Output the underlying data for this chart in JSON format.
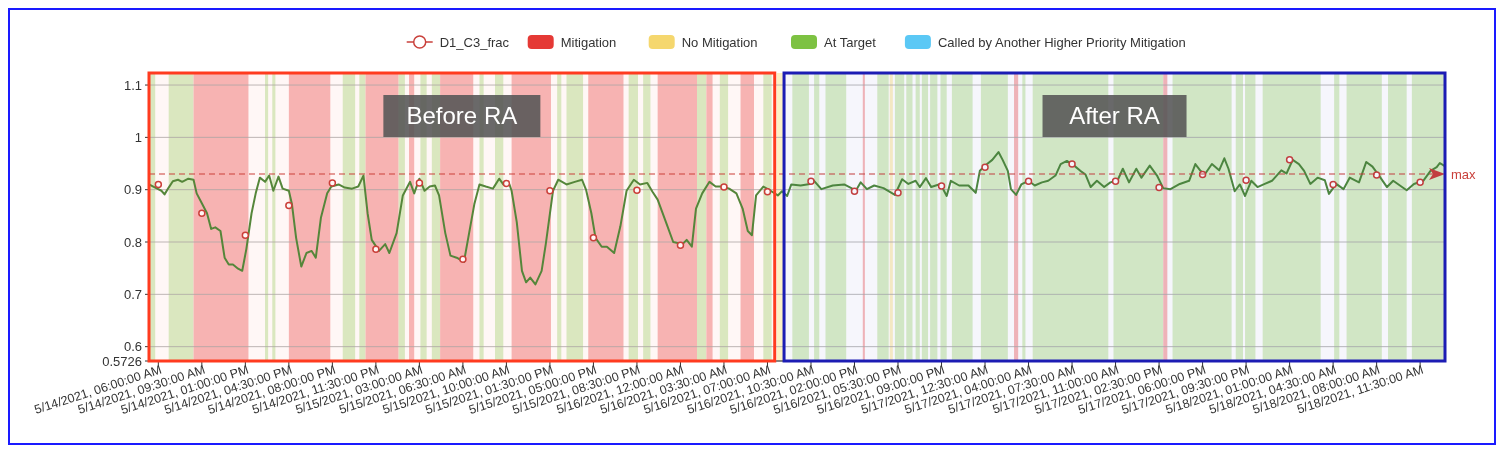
{
  "chart_data": {
    "type": "line",
    "legend": "top",
    "grid": "y",
    "xlim": [
      "2021-05-14T05:15",
      "2021-05-18T13:30"
    ],
    "ylim": [
      0.5726,
      1.123
    ],
    "yticks": [
      0.5726,
      0.6,
      0.7,
      0.8,
      0.9,
      1,
      1.1
    ],
    "xticks": [
      {
        "value": "2021-05-14T06:00",
        "label": "5/14/2021, 06:00:00 AM"
      },
      {
        "value": "2021-05-14T09:30",
        "label": "5/14/2021, 09:30:00 AM"
      },
      {
        "value": "2021-05-14T13:00",
        "label": "5/14/2021, 01:00:00 PM"
      },
      {
        "value": "2021-05-14T16:30",
        "label": "5/14/2021, 04:30:00 PM"
      },
      {
        "value": "2021-05-14T20:00",
        "label": "5/14/2021, 08:00:00 PM"
      },
      {
        "value": "2021-05-14T23:30",
        "label": "5/14/2021, 11:30:00 PM"
      },
      {
        "value": "2021-05-15T03:00",
        "label": "5/15/2021, 03:00:00 AM"
      },
      {
        "value": "2021-05-15T06:30",
        "label": "5/15/2021, 06:30:00 AM"
      },
      {
        "value": "2021-05-15T10:00",
        "label": "5/15/2021, 10:00:00 AM"
      },
      {
        "value": "2021-05-15T13:30",
        "label": "5/15/2021, 01:30:00 PM"
      },
      {
        "value": "2021-05-15T17:00",
        "label": "5/15/2021, 05:00:00 PM"
      },
      {
        "value": "2021-05-15T20:30",
        "label": "5/15/2021, 08:30:00 PM"
      },
      {
        "value": "2021-05-16T00:00",
        "label": "5/16/2021, 12:00:00 AM"
      },
      {
        "value": "2021-05-16T03:30",
        "label": "5/16/2021, 03:30:00 AM"
      },
      {
        "value": "2021-05-16T07:00",
        "label": "5/16/2021, 07:00:00 AM"
      },
      {
        "value": "2021-05-16T10:30",
        "label": "5/16/2021, 10:30:00 AM"
      },
      {
        "value": "2021-05-16T14:00",
        "label": "5/16/2021, 02:00:00 PM"
      },
      {
        "value": "2021-05-16T17:30",
        "label": "5/16/2021, 05:30:00 PM"
      },
      {
        "value": "2021-05-16T21:00",
        "label": "5/16/2021, 09:00:00 PM"
      },
      {
        "value": "2021-05-17T00:30",
        "label": "5/17/2021, 12:30:00 AM"
      },
      {
        "value": "2021-05-17T04:00",
        "label": "5/17/2021, 04:00:00 AM"
      },
      {
        "value": "2021-05-17T07:30",
        "label": "5/17/2021, 07:30:00 AM"
      },
      {
        "value": "2021-05-17T11:00",
        "label": "5/17/2021, 11:00:00 AM"
      },
      {
        "value": "2021-05-17T14:30",
        "label": "5/17/2021, 02:30:00 PM"
      },
      {
        "value": "2021-05-17T18:00",
        "label": "5/17/2021, 06:00:00 PM"
      },
      {
        "value": "2021-05-17T21:30",
        "label": "5/17/2021, 09:30:00 PM"
      },
      {
        "value": "2021-05-18T01:00",
        "label": "5/18/2021, 01:00:00 AM"
      },
      {
        "value": "2021-05-18T04:30",
        "label": "5/18/2021, 04:30:00 AM"
      },
      {
        "value": "2021-05-18T08:00",
        "label": "5/18/2021, 08:00:00 AM"
      },
      {
        "value": "2021-05-18T11:30",
        "label": "5/18/2021, 11:30:00 AM"
      }
    ],
    "series": [
      {
        "color": "#4f8a3c",
        "x": [
          "2021-05-14T05:15",
          "2021-05-14T05:45",
          "2021-05-14T06:15",
          "2021-05-14T06:30",
          "2021-05-14T06:50",
          "2021-05-14T07:10",
          "2021-05-14T07:35",
          "2021-05-14T07:55",
          "2021-05-14T08:25",
          "2021-05-14T08:50",
          "2021-05-14T09:05",
          "2021-05-14T09:30",
          "2021-05-14T09:55",
          "2021-05-14T10:15",
          "2021-05-14T10:35",
          "2021-05-14T11:00",
          "2021-05-14T11:20",
          "2021-05-14T11:40",
          "2021-05-14T12:00",
          "2021-05-14T12:25",
          "2021-05-14T12:45",
          "2021-05-14T13:05",
          "2021-05-14T13:30",
          "2021-05-14T13:50",
          "2021-05-14T14:10",
          "2021-05-14T14:35",
          "2021-05-14T14:55",
          "2021-05-14T15:15",
          "2021-05-14T15:40",
          "2021-05-14T16:00",
          "2021-05-14T16:30",
          "2021-05-14T16:45",
          "2021-05-14T17:05",
          "2021-05-14T17:30",
          "2021-05-14T17:55",
          "2021-05-14T18:20",
          "2021-05-14T18:40",
          "2021-05-14T19:05",
          "2021-05-14T19:35",
          "2021-05-14T19:55",
          "2021-05-14T20:30",
          "2021-05-14T21:00",
          "2021-05-14T21:35",
          "2021-05-14T22:05",
          "2021-05-14T22:30",
          "2021-05-14T22:50",
          "2021-05-14T23:10",
          "2021-05-14T23:45",
          "2021-05-15T00:15",
          "2021-05-15T00:35",
          "2021-05-15T01:10",
          "2021-05-15T01:40",
          "2021-05-15T02:15",
          "2021-05-15T02:35",
          "2021-05-15T03:00",
          "2021-05-15T03:25",
          "2021-05-15T03:50",
          "2021-05-15T04:15",
          "2021-05-15T04:35",
          "2021-05-15T05:05",
          "2021-05-15T05:30",
          "2021-05-15T06:00",
          "2021-05-15T06:35",
          "2021-05-15T07:00",
          "2021-05-15T07:25",
          "2021-05-15T07:50",
          "2021-05-15T08:20",
          "2021-05-15T08:55",
          "2021-05-15T09:25",
          "2021-05-15T09:45",
          "2021-05-15T10:15",
          "2021-05-15T10:25",
          "2021-05-15T10:50",
          "2021-05-15T11:15",
          "2021-05-15T11:35",
          "2021-05-15T11:55",
          "2021-05-15T12:20",
          "2021-05-15T12:50",
          "2021-05-15T13:10",
          "2021-05-15T13:45",
          "2021-05-15T14:10",
          "2021-05-15T14:50",
          "2021-05-15T15:30",
          "2021-05-15T16:05",
          "2021-05-15T16:25",
          "2021-05-15T16:50",
          "2021-05-15T17:10",
          "2021-05-15T17:40",
          "2021-05-15T18:05",
          "2021-05-15T18:40",
          "2021-05-15T19:10",
          "2021-05-15T19:40",
          "2021-05-15T20:15",
          "2021-05-15T20:45",
          "2021-05-15T21:20",
          "2021-05-15T21:45",
          "2021-05-15T22:10",
          "2021-05-15T22:50",
          "2021-05-15T23:25",
          "2021-05-16T00:10",
          "2021-05-16T00:30",
          "2021-05-16T00:55",
          "2021-05-16T01:15",
          "2021-05-16T01:45",
          "2021-05-16T02:20",
          "2021-05-16T02:50",
          "2021-05-16T03:25",
          "2021-05-16T03:55",
          "2021-05-16T04:30",
          "2021-05-16T05:00",
          "2021-05-16T05:25",
          "2021-05-16T05:45",
          "2021-05-16T06:05",
          "2021-05-16T06:40",
          "2021-05-16T07:15",
          "2021-05-16T07:50",
          "2021-05-16T08:10",
          "2021-05-16T08:35",
          "2021-05-16T08:55",
          "2021-05-16T09:40",
          "2021-05-16T10:25",
          "2021-05-16T10:45",
          "2021-05-16T11:20",
          "2021-05-16T12:15",
          "2021-05-16T13:10",
          "2021-05-16T13:45",
          "2021-05-16T14:05",
          "2021-05-16T14:30",
          "2021-05-16T15:00",
          "2021-05-16T15:35",
          "2021-05-16T16:20",
          "2021-05-16T17:15",
          "2021-05-16T17:50",
          "2021-05-16T18:20",
          "2021-05-16T18:55",
          "2021-05-16T19:15",
          "2021-05-16T19:45",
          "2021-05-16T20:10",
          "2021-05-16T20:55",
          "2021-05-16T21:25",
          "2021-05-16T21:45",
          "2021-05-16T22:25",
          "2021-05-16T23:10",
          "2021-05-16T23:45",
          "2021-05-17T00:05",
          "2021-05-17T00:40",
          "2021-05-17T01:05",
          "2021-05-17T01:35",
          "2021-05-17T01:55",
          "2021-05-17T02:20",
          "2021-05-17T02:35",
          "2021-05-17T03:00",
          "2021-05-17T03:25",
          "2021-05-17T04:00",
          "2021-05-17T04:30",
          "2021-05-17T05:05",
          "2021-05-17T05:35",
          "2021-05-17T06:10",
          "2021-05-17T06:35",
          "2021-05-17T07:05",
          "2021-05-17T07:40",
          "2021-05-17T08:10",
          "2021-05-17T08:35",
          "2021-05-17T09:00",
          "2021-05-17T09:30",
          "2021-05-17T10:05",
          "2021-05-17T10:35",
          "2021-05-17T11:10",
          "2021-05-17T11:35",
          "2021-05-17T12:05",
          "2021-05-17T12:40",
          "2021-05-17T13:05",
          "2021-05-17T13:45",
          "2021-05-17T14:20",
          "2021-05-17T14:50",
          "2021-05-17T15:25",
          "2021-05-17T16:10",
          "2021-05-17T16:55",
          "2021-05-17T17:25",
          "2021-05-17T17:50",
          "2021-05-17T18:10",
          "2021-05-17T18:45",
          "2021-05-17T19:20",
          "2021-05-17T19:45",
          "2021-05-17T20:05",
          "2021-05-17T20:35",
          "2021-05-17T21:00",
          "2021-05-17T21:25",
          "2021-05-17T21:55",
          "2021-05-17T22:25",
          "2021-05-17T23:00",
          "2021-05-17T23:35",
          "2021-05-18T00:20",
          "2021-05-18T00:45",
          "2021-05-18T01:15",
          "2021-05-18T01:45",
          "2021-05-18T02:10",
          "2021-05-18T02:40",
          "2021-05-18T03:15",
          "2021-05-18T03:50",
          "2021-05-18T04:10",
          "2021-05-18T04:45",
          "2021-05-18T05:20",
          "2021-05-18T05:50",
          "2021-05-18T06:35",
          "2021-05-18T07:10",
          "2021-05-18T07:40",
          "2021-05-18T08:15",
          "2021-05-18T08:50",
          "2021-05-18T09:20",
          "2021-05-18T10:25",
          "2021-05-18T11:00",
          "2021-05-18T11:45",
          "2021-05-18T12:20",
          "2021-05-18T12:50",
          "2021-05-18T13:05",
          "2021-05-18T13:25"
        ],
        "values": [
          0.91,
          0.904,
          0.898,
          0.891,
          0.904,
          0.916,
          0.919,
          0.915,
          0.921,
          0.919,
          0.893,
          0.874,
          0.855,
          0.825,
          0.828,
          0.821,
          0.77,
          0.757,
          0.757,
          0.749,
          0.745,
          0.787,
          0.855,
          0.893,
          0.923,
          0.915,
          0.927,
          0.898,
          0.925,
          0.902,
          0.898,
          0.872,
          0.808,
          0.753,
          0.779,
          0.783,
          0.77,
          0.847,
          0.893,
          0.906,
          0.91,
          0.904,
          0.902,
          0.906,
          0.927,
          0.855,
          0.804,
          0.783,
          0.796,
          0.779,
          0.817,
          0.889,
          0.915,
          0.893,
          0.921,
          0.898,
          0.906,
          0.908,
          0.889,
          0.817,
          0.774,
          0.77,
          0.762,
          0.817,
          0.872,
          0.91,
          0.906,
          0.902,
          0.921,
          0.91,
          0.91,
          0.898,
          0.838,
          0.745,
          0.723,
          0.732,
          0.719,
          0.745,
          0.796,
          0.898,
          0.919,
          0.91,
          0.915,
          0.919,
          0.899,
          0.855,
          0.808,
          0.791,
          0.791,
          0.779,
          0.83,
          0.898,
          0.919,
          0.91,
          0.913,
          0.896,
          0.881,
          0.838,
          0.8,
          0.796,
          0.804,
          0.791,
          0.864,
          0.893,
          0.915,
          0.906,
          0.906,
          0.902,
          0.893,
          0.864,
          0.821,
          0.813,
          0.889,
          0.906,
          0.898,
          0.889,
          0.897,
          0.888,
          0.91,
          0.908,
          0.911,
          0.917,
          0.901,
          0.908,
          0.91,
          0.903,
          0.897,
          0.914,
          0.901,
          0.908,
          0.903,
          0.89,
          0.92,
          0.911,
          0.917,
          0.905,
          0.922,
          0.905,
          0.911,
          0.888,
          0.917,
          0.908,
          0.908,
          0.894,
          0.936,
          0.949,
          0.957,
          0.972,
          0.957,
          0.936,
          0.901,
          0.89,
          0.91,
          0.917,
          0.908,
          0.914,
          0.917,
          0.927,
          0.949,
          0.955,
          0.946,
          0.936,
          0.929,
          0.905,
          0.917,
          0.905,
          0.914,
          0.918,
          0.94,
          0.914,
          0.94,
          0.923,
          0.946,
          0.927,
          0.903,
          0.901,
          0.911,
          0.917,
          0.949,
          0.936,
          0.929,
          0.949,
          0.937,
          0.96,
          0.94,
          0.897,
          0.91,
          0.888,
          0.917,
          0.905,
          0.911,
          0.917,
          0.937,
          0.931,
          0.957,
          0.949,
          0.936,
          0.911,
          0.923,
          0.918,
          0.892,
          0.911,
          0.901,
          0.923,
          0.914,
          0.953,
          0.944,
          0.925,
          0.905,
          0.917,
          0.899,
          0.911,
          0.917,
          0.936,
          0.943,
          0.951,
          0.946
        ]
      },
      {
        "type": "scatter",
        "name": "D1_C3_frac",
        "color": "#c9403b",
        "marker": "circle",
        "x": [
          "2021-05-14T06:00",
          "2021-05-14T09:30",
          "2021-05-14T13:00",
          "2021-05-14T16:30",
          "2021-05-14T20:00",
          "2021-05-14T23:30",
          "2021-05-15T03:00",
          "2021-05-15T06:30",
          "2021-05-15T10:00",
          "2021-05-15T13:30",
          "2021-05-15T17:00",
          "2021-05-15T20:30",
          "2021-05-16T00:00",
          "2021-05-16T03:30",
          "2021-05-16T07:00",
          "2021-05-16T10:30",
          "2021-05-16T14:00",
          "2021-05-16T17:30",
          "2021-05-16T21:00",
          "2021-05-17T00:30",
          "2021-05-17T04:00",
          "2021-05-17T07:30",
          "2021-05-17T11:00",
          "2021-05-17T14:30",
          "2021-05-17T18:00",
          "2021-05-17T21:30",
          "2021-05-18T01:00",
          "2021-05-18T04:30",
          "2021-05-18T08:00",
          "2021-05-18T11:30"
        ],
        "values": [
          0.91,
          0.855,
          0.813,
          0.87,
          0.913,
          0.786,
          0.913,
          0.767,
          0.912,
          0.898,
          0.808,
          0.899,
          0.794,
          0.905,
          0.896,
          0.916,
          0.897,
          0.894,
          0.907,
          0.943,
          0.916,
          0.949,
          0.916,
          0.904,
          0.929,
          0.918,
          0.957,
          0.91,
          0.928,
          0.914
        ]
      },
      {
        "type": "area",
        "name": "Mitigation",
        "color": "#e53935"
      },
      {
        "type": "area",
        "name": "No Mitigation",
        "color": "#f5d76e"
      },
      {
        "type": "area",
        "name": "At Target",
        "color": "#7dc242"
      },
      {
        "type": "area",
        "name": "Called by Another Higher Priority Mitigation",
        "color": "#5bc8f5"
      }
    ],
    "ref_lines": [
      {
        "axis": "y",
        "value": 0.93,
        "label": "max",
        "color": "#c9403b",
        "line_style": "dashed"
      }
    ],
    "bands": [
      {
        "axis": "x",
        "from": "2021-05-14T05:15",
        "to": "2021-05-14T05:45",
        "color": "#d9efc6"
      },
      {
        "axis": "x",
        "from": "2021-05-14T06:50",
        "to": "2021-05-14T08:50",
        "color": "#d9efc6"
      },
      {
        "axis": "x",
        "from": "2021-05-14T08:50",
        "to": "2021-05-14T13:15",
        "color": "#f7b9b9"
      },
      {
        "axis": "x",
        "from": "2021-05-14T14:35",
        "to": "2021-05-14T14:50",
        "color": "#d9efc6"
      },
      {
        "axis": "x",
        "from": "2021-05-14T15:10",
        "to": "2021-05-14T15:25",
        "color": "#d9efc6"
      },
      {
        "axis": "x",
        "from": "2021-05-14T16:30",
        "to": "2021-05-14T19:50",
        "color": "#f7b9b9"
      },
      {
        "axis": "x",
        "from": "2021-05-14T20:50",
        "to": "2021-05-14T21:50",
        "color": "#d9efc6"
      },
      {
        "axis": "x",
        "from": "2021-05-14T22:10",
        "to": "2021-05-14T22:40",
        "color": "#d9efc6"
      },
      {
        "axis": "x",
        "from": "2021-05-14T22:40",
        "to": "2021-05-15T01:20",
        "color": "#f7b9b9"
      },
      {
        "axis": "x",
        "from": "2021-05-15T01:20",
        "to": "2021-05-15T01:50",
        "color": "#d9efc6"
      },
      {
        "axis": "x",
        "from": "2021-05-15T02:10",
        "to": "2021-05-15T02:35",
        "color": "#f7b9b9"
      },
      {
        "axis": "x",
        "from": "2021-05-15T03:05",
        "to": "2021-05-15T03:35",
        "color": "#d9efc6"
      },
      {
        "axis": "x",
        "from": "2021-05-15T04:00",
        "to": "2021-05-15T04:40",
        "color": "#d9efc6"
      },
      {
        "axis": "x",
        "from": "2021-05-15T04:40",
        "to": "2021-05-15T07:20",
        "color": "#f7b9b9"
      },
      {
        "axis": "x",
        "from": "2021-05-15T07:50",
        "to": "2021-05-15T08:10",
        "color": "#d9efc6"
      },
      {
        "axis": "x",
        "from": "2021-05-15T09:05",
        "to": "2021-05-15T09:45",
        "color": "#d9efc6"
      },
      {
        "axis": "x",
        "from": "2021-05-15T10:25",
        "to": "2021-05-15T13:35",
        "color": "#f7b9b9"
      },
      {
        "axis": "x",
        "from": "2021-05-15T14:05",
        "to": "2021-05-15T14:25",
        "color": "#d9efc6"
      },
      {
        "axis": "x",
        "from": "2021-05-15T14:50",
        "to": "2021-05-15T16:10",
        "color": "#d9efc6"
      },
      {
        "axis": "x",
        "from": "2021-05-15T16:35",
        "to": "2021-05-15T19:25",
        "color": "#f7b9b9"
      },
      {
        "axis": "x",
        "from": "2021-05-15T19:50",
        "to": "2021-05-15T20:35",
        "color": "#d9efc6"
      },
      {
        "axis": "x",
        "from": "2021-05-15T21:00",
        "to": "2021-05-15T21:35",
        "color": "#d9efc6"
      },
      {
        "axis": "x",
        "from": "2021-05-15T22:10",
        "to": "2021-05-16T01:20",
        "color": "#f7b9b9"
      },
      {
        "axis": "x",
        "from": "2021-05-16T01:20",
        "to": "2021-05-16T02:05",
        "color": "#d9efc6"
      },
      {
        "axis": "x",
        "from": "2021-05-16T02:05",
        "to": "2021-05-16T02:35",
        "color": "#f7b9b9"
      },
      {
        "axis": "x",
        "from": "2021-05-16T03:10",
        "to": "2021-05-16T03:50",
        "color": "#d9efc6"
      },
      {
        "axis": "x",
        "from": "2021-05-16T04:50",
        "to": "2021-05-16T05:55",
        "color": "#f7b9b9"
      },
      {
        "axis": "x",
        "from": "2021-05-16T06:40",
        "to": "2021-05-16T07:20",
        "color": "#d9efc6"
      },
      {
        "axis": "x",
        "from": "2021-05-16T07:45",
        "to": "2021-05-16T08:20",
        "color": "#fdf1c4"
      },
      {
        "axis": "x",
        "from": "2021-05-16T09:00",
        "to": "2021-05-16T10:20",
        "color": "#d9efc6"
      },
      {
        "axis": "x",
        "from": "2021-05-16T10:45",
        "to": "2021-05-16T11:10",
        "color": "#d9efc6"
      },
      {
        "axis": "x",
        "from": "2021-05-16T11:40",
        "to": "2021-05-16T13:20",
        "color": "#d9efc6"
      },
      {
        "axis": "x",
        "from": "2021-05-16T14:40",
        "to": "2021-05-16T14:50",
        "color": "#f7b9b9"
      },
      {
        "axis": "x",
        "from": "2021-05-16T15:50",
        "to": "2021-05-16T16:45",
        "color": "#d9efc6"
      },
      {
        "axis": "x",
        "from": "2021-05-16T16:50",
        "to": "2021-05-16T17:05",
        "color": "#fdf1c4"
      },
      {
        "axis": "x",
        "from": "2021-05-16T17:15",
        "to": "2021-05-16T18:00",
        "color": "#d9efc6"
      },
      {
        "axis": "x",
        "from": "2021-05-16T18:10",
        "to": "2021-05-16T18:40",
        "color": "#d9efc6"
      },
      {
        "axis": "x",
        "from": "2021-05-16T18:55",
        "to": "2021-05-16T19:15",
        "color": "#d9efc6"
      },
      {
        "axis": "x",
        "from": "2021-05-16T19:25",
        "to": "2021-05-16T19:55",
        "color": "#d9efc6"
      },
      {
        "axis": "x",
        "from": "2021-05-16T20:05",
        "to": "2021-05-16T20:40",
        "color": "#d9efc6"
      },
      {
        "axis": "x",
        "from": "2021-05-16T20:55",
        "to": "2021-05-16T21:25",
        "color": "#d9efc6"
      },
      {
        "axis": "x",
        "from": "2021-05-16T21:50",
        "to": "2021-05-16T23:30",
        "color": "#d9efc6"
      },
      {
        "axis": "x",
        "from": "2021-05-17T00:10",
        "to": "2021-05-17T02:20",
        "color": "#d9efc6"
      },
      {
        "axis": "x",
        "from": "2021-05-17T02:50",
        "to": "2021-05-17T03:10",
        "color": "#f7b9b9"
      },
      {
        "axis": "x",
        "from": "2021-05-17T03:30",
        "to": "2021-05-17T03:45",
        "color": "#d9efc6"
      },
      {
        "axis": "x",
        "from": "2021-05-17T04:20",
        "to": "2021-05-17T10:25",
        "color": "#d9efc6"
      },
      {
        "axis": "x",
        "from": "2021-05-17T10:50",
        "to": "2021-05-17T14:50",
        "color": "#d9efc6"
      },
      {
        "axis": "x",
        "from": "2021-05-17T14:50",
        "to": "2021-05-17T15:10",
        "color": "#f7b9b9"
      },
      {
        "axis": "x",
        "from": "2021-05-17T15:35",
        "to": "2021-05-17T20:20",
        "color": "#d9efc6"
      },
      {
        "axis": "x",
        "from": "2021-05-17T20:40",
        "to": "2021-05-17T21:15",
        "color": "#d9efc6"
      },
      {
        "axis": "x",
        "from": "2021-05-17T21:25",
        "to": "2021-05-17T22:15",
        "color": "#d9efc6"
      },
      {
        "axis": "x",
        "from": "2021-05-17T22:50",
        "to": "2021-05-18T03:30",
        "color": "#d9efc6"
      },
      {
        "axis": "x",
        "from": "2021-05-18T04:35",
        "to": "2021-05-18T05:00",
        "color": "#d9efc6"
      },
      {
        "axis": "x",
        "from": "2021-05-18T05:35",
        "to": "2021-05-18T08:25",
        "color": "#d9efc6"
      },
      {
        "axis": "x",
        "from": "2021-05-18T08:55",
        "to": "2021-05-18T10:25",
        "color": "#d9efc6"
      },
      {
        "axis": "x",
        "from": "2021-05-18T10:50",
        "to": "2021-05-18T13:30",
        "color": "#d9efc6"
      },
      {
        "axis": "x",
        "from": "2021-05-14T05:15",
        "to": "2021-05-16T07:35",
        "label": "Before RA",
        "color": "#ff3b1f"
      },
      {
        "axis": "x",
        "from": "2021-05-16T08:20",
        "to": "2021-05-18T13:30",
        "label": "After RA",
        "color": "#1c1cb4"
      }
    ]
  }
}
